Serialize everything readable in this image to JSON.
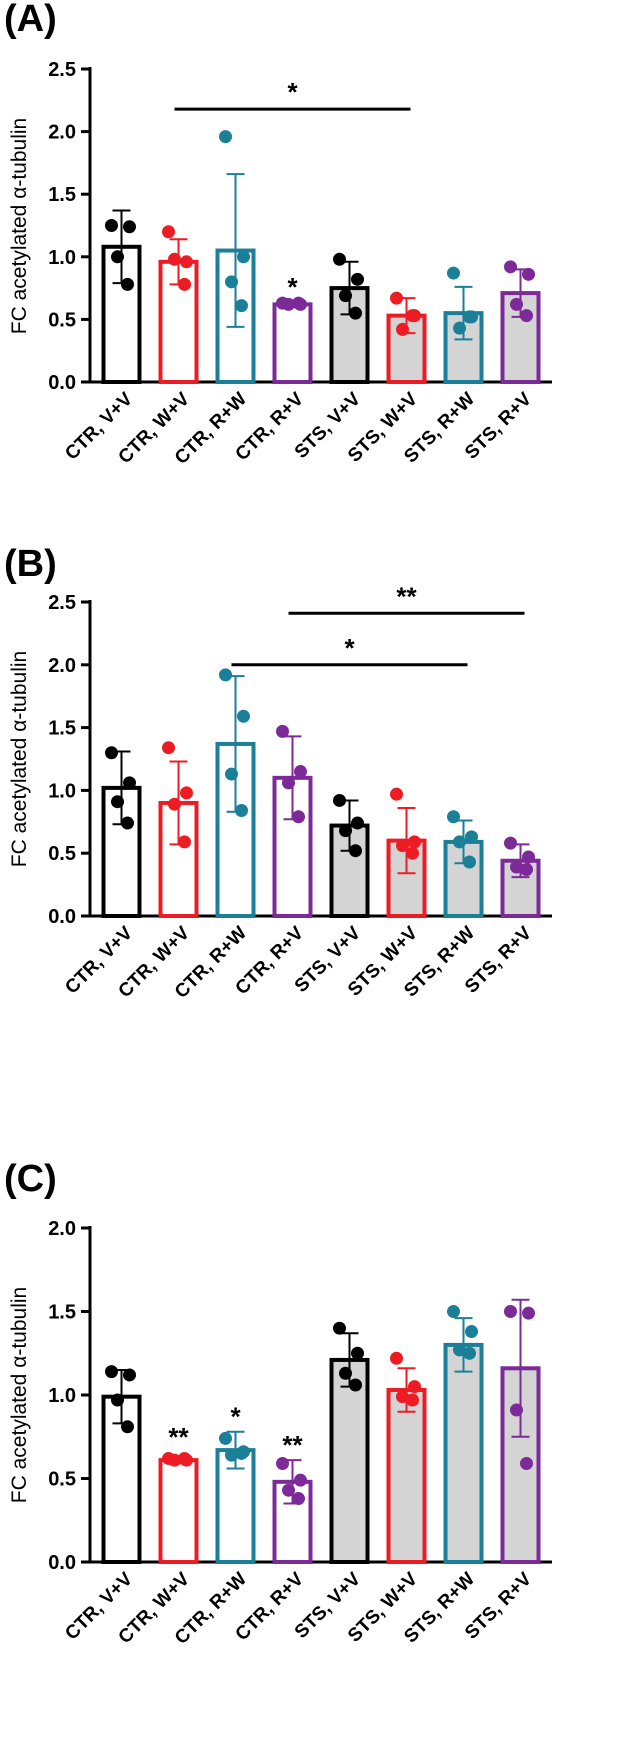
{
  "chart_data": [
    {
      "type": "bar",
      "panel_label": "(A)",
      "ylabel": "FC acetylated α-tubulin",
      "ylim": [
        0,
        2.5
      ],
      "yticks": [
        "0.0",
        "0.5",
        "1.0",
        "1.5",
        "2.0",
        "2.5"
      ],
      "tick_values": [
        0,
        0.5,
        1.0,
        1.5,
        2.0,
        2.5
      ],
      "categories": [
        "CTR, V+V",
        "CTR, W+V",
        "CTR, R+W",
        "CTR, R+V",
        "STS, V+V",
        "STS, W+V",
        "STS, R+W",
        "STS, R+V"
      ],
      "means": [
        1.08,
        0.96,
        1.05,
        0.62,
        0.75,
        0.53,
        0.55,
        0.71
      ],
      "sd": [
        0.29,
        0.18,
        0.61,
        0.02,
        0.21,
        0.14,
        0.21,
        0.19
      ],
      "points": [
        [
          1.25,
          1.24,
          1.0,
          0.78
        ],
        [
          1.2,
          0.96,
          0.98,
          0.78
        ],
        [
          1.96,
          1.0,
          0.8,
          0.61
        ],
        [
          0.63,
          0.62,
          0.62,
          0.63
        ],
        [
          0.98,
          0.82,
          0.69,
          0.55
        ],
        [
          0.67,
          0.53,
          0.42,
          0.53
        ],
        [
          0.87,
          0.52,
          0.43,
          0.52
        ],
        [
          0.92,
          0.86,
          0.62,
          0.53
        ]
      ],
      "significance": [
        {
          "type": "bracket",
          "from": 1,
          "to": 5,
          "y": 2.18,
          "label": "*"
        },
        {
          "type": "above",
          "bar": 3,
          "y": 0.72,
          "label": "*"
        }
      ]
    },
    {
      "type": "bar",
      "panel_label": "(B)",
      "ylabel": "FC acetylated α-tubulin",
      "ylim": [
        0,
        2.5
      ],
      "yticks": [
        "0.0",
        "0.5",
        "1.0",
        "1.5",
        "2.0",
        "2.5"
      ],
      "tick_values": [
        0,
        0.5,
        1.0,
        1.5,
        2.0,
        2.5
      ],
      "categories": [
        "CTR, V+V",
        "CTR, W+V",
        "CTR, R+W",
        "CTR, R+V",
        "STS, V+V",
        "STS, W+V",
        "STS, R+W",
        "STS, R+V"
      ],
      "means": [
        1.02,
        0.9,
        1.37,
        1.1,
        0.72,
        0.6,
        0.59,
        0.44
      ],
      "sd": [
        0.29,
        0.33,
        0.54,
        0.33,
        0.2,
        0.26,
        0.17,
        0.13
      ],
      "points": [
        [
          1.3,
          1.06,
          0.91,
          0.74
        ],
        [
          1.34,
          0.98,
          0.89,
          0.59
        ],
        [
          1.92,
          1.59,
          1.13,
          0.84
        ],
        [
          1.47,
          1.15,
          1.06,
          0.79
        ],
        [
          0.92,
          0.74,
          0.68,
          0.52
        ],
        [
          0.97,
          0.59,
          0.56,
          0.5
        ],
        [
          0.79,
          0.63,
          0.59,
          0.43
        ],
        [
          0.58,
          0.47,
          0.39,
          0.37
        ]
      ],
      "significance": [
        {
          "type": "bracket",
          "from": 2,
          "to": 6,
          "y": 2.0,
          "label": "*"
        },
        {
          "type": "bracket",
          "from": 3,
          "to": 7,
          "y": 2.41,
          "label": "**"
        }
      ]
    },
    {
      "type": "bar",
      "panel_label": "(C)",
      "ylabel": "FC acetylated α-tubulin",
      "ylim": [
        0,
        2.0
      ],
      "yticks": [
        "0.0",
        "0.5",
        "1.0",
        "1.5",
        "2.0"
      ],
      "tick_values": [
        0,
        0.5,
        1.0,
        1.5,
        2.0
      ],
      "categories": [
        "CTR, V+V",
        "CTR, W+V",
        "CTR, R+W",
        "CTR, R+V",
        "STS, V+V",
        "STS, W+V",
        "STS, R+W",
        "STS, R+V"
      ],
      "means": [
        0.99,
        0.61,
        0.67,
        0.48,
        1.21,
        1.03,
        1.3,
        1.16
      ],
      "sd": [
        0.16,
        0.02,
        0.11,
        0.13,
        0.16,
        0.13,
        0.16,
        0.41
      ],
      "points": [
        [
          1.14,
          1.12,
          0.97,
          0.81
        ],
        [
          0.62,
          0.61,
          0.61,
          0.62
        ],
        [
          0.74,
          0.66,
          0.64,
          0.65
        ],
        [
          0.59,
          0.49,
          0.43,
          0.38
        ],
        [
          1.4,
          1.25,
          1.13,
          1.06
        ],
        [
          1.22,
          1.05,
          0.99,
          0.97
        ],
        [
          1.5,
          1.38,
          1.27,
          1.25
        ],
        [
          1.5,
          1.49,
          0.91,
          0.59
        ]
      ],
      "significance": [
        {
          "type": "above",
          "bar": 1,
          "y": 0.72,
          "label": "**"
        },
        {
          "type": "above",
          "bar": 2,
          "y": 0.84,
          "label": "*"
        },
        {
          "type": "above",
          "bar": 3,
          "y": 0.67,
          "label": "**"
        }
      ]
    }
  ],
  "colors": {
    "bar_strokes": [
      "#000000",
      "#ed1c24",
      "#1a7f97",
      "#7b2a98",
      "#000000",
      "#ed1c24",
      "#1a7f97",
      "#7b2a98"
    ],
    "ctr_fill": "#ffffff",
    "sts_fill": "#d4d4d4"
  }
}
